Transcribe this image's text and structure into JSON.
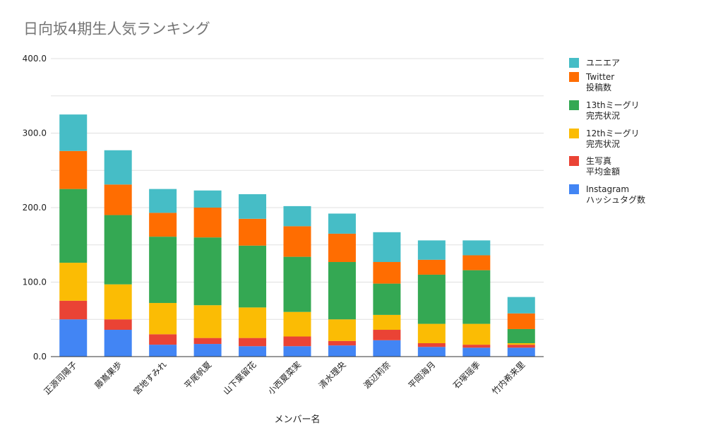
{
  "chart_data": {
    "type": "bar",
    "stacked": true,
    "title": "日向坂4期生人気ランキング",
    "xlabel": "メンバー名",
    "ylabel": "",
    "ylim": [
      0,
      400
    ],
    "yticks": [
      "0.0",
      "100.0",
      "200.0",
      "300.0",
      "400.0"
    ],
    "grid": true,
    "legend_position": "right",
    "categories": [
      "正源司陽子",
      "藤嶌果歩",
      "宮地すみれ",
      "平尾帆夏",
      "山下葉留花",
      "小西夏菜実",
      "清水理央",
      "渡辺莉奈",
      "平岡海月",
      "石塚瑶季",
      "竹内希来里"
    ],
    "series": [
      {
        "name": "Instagram\nハッシュタグ数",
        "color": "#4285f4",
        "values": [
          50,
          36,
          16,
          17,
          14,
          14,
          15,
          22,
          13,
          12,
          12
        ]
      },
      {
        "name": "生写真\n平均金額",
        "color": "#ea4335",
        "values": [
          25,
          14,
          14,
          8,
          11,
          13,
          6,
          14,
          5,
          4,
          4
        ]
      },
      {
        "name": "12thミーグリ\n完売状況",
        "color": "#fbbc04",
        "values": [
          51,
          47,
          42,
          44,
          41,
          33,
          29,
          20,
          26,
          28,
          2
        ]
      },
      {
        "name": "13thミーグリ\n完売状況",
        "color": "#34a853",
        "values": [
          99,
          93,
          89,
          91,
          83,
          74,
          77,
          42,
          66,
          72,
          19
        ]
      },
      {
        "name": "Twitter\n投稿数",
        "color": "#ff6d01",
        "values": [
          51,
          41,
          32,
          40,
          36,
          41,
          38,
          29,
          20,
          20,
          21
        ]
      },
      {
        "name": "ユニエア",
        "color": "#46bdc6",
        "values": [
          49,
          46,
          32,
          23,
          33,
          27,
          27,
          40,
          26,
          20,
          22
        ]
      }
    ]
  }
}
